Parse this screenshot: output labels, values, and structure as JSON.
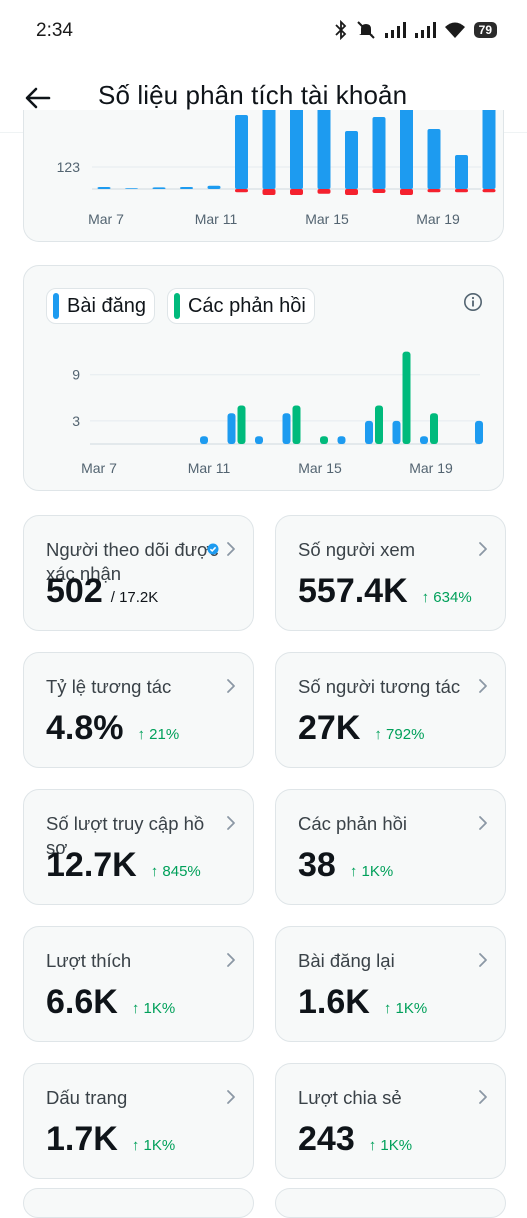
{
  "status_bar": {
    "time": "2:34",
    "battery": "79",
    "icons": [
      "bluetooth-icon",
      "mute-icon",
      "signal-icon",
      "signal-icon",
      "wifi-icon",
      "battery-icon"
    ]
  },
  "header": {
    "title": "Số liệu phân tích tài khoản",
    "back_icon": "arrow-left-icon"
  },
  "chart_data": [
    {
      "type": "bar",
      "x_tick_labels": [
        "Mar 7",
        "Mar 11",
        "Mar 15",
        "Mar 19"
      ],
      "y_tick_labels": [
        "123"
      ],
      "categories": [
        "Mar 6",
        "Mar 7",
        "Mar 8",
        "Mar 9",
        "Mar 10",
        "Mar 11",
        "Mar 12",
        "Mar 13",
        "Mar 14",
        "Mar 15",
        "Mar 16",
        "Mar 17",
        "Mar 18",
        "Mar 19",
        "Mar 20"
      ],
      "series": [
        {
          "color": "#1d9bf0",
          "values": [
            5,
            2,
            4,
            5,
            8,
            185,
            300,
            300,
            240,
            145,
            180,
            240,
            150,
            85,
            225
          ]
        },
        {
          "color": "#f4212e",
          "values": [
            0,
            0,
            0,
            0,
            0,
            -8,
            -15,
            -15,
            -12,
            -15,
            -10,
            -15,
            -8,
            -8,
            -8
          ]
        }
      ],
      "grid": true,
      "note_visible": "chart top is cropped by scrolling"
    },
    {
      "type": "bar",
      "legend": [
        "Bài đăng",
        "Các phản hồi"
      ],
      "legend_position": "top-left",
      "x_tick_labels": [
        "Mar 7",
        "Mar 11",
        "Mar 15",
        "Mar 19"
      ],
      "y_tick_labels": [
        "9",
        "3"
      ],
      "ylim": [
        0,
        12
      ],
      "categories": [
        "Mar 6",
        "Mar 7",
        "Mar 8",
        "Mar 9",
        "Mar 10",
        "Mar 11",
        "Mar 12",
        "Mar 13",
        "Mar 14",
        "Mar 15",
        "Mar 16",
        "Mar 17",
        "Mar 18",
        "Mar 19",
        "Mar 20"
      ],
      "series": [
        {
          "name": "Bài đăng",
          "color": "#1d9bf0",
          "values": [
            0,
            0,
            0,
            0,
            1,
            4,
            1,
            4,
            0,
            1,
            3,
            3,
            1,
            0,
            3
          ]
        },
        {
          "name": "Các phản hồi",
          "color": "#00ba7c",
          "values": [
            0,
            0,
            0,
            0,
            0,
            5,
            0,
            5,
            1,
            0,
            5,
            12,
            4,
            0,
            0
          ]
        }
      ],
      "grid": true
    }
  ],
  "chart_ui": {
    "legend_posts": "Bài đăng",
    "legend_replies": "Các phản hồi",
    "info_icon": "info-icon"
  },
  "stats": [
    {
      "label": "Người theo dõi được xác nhận",
      "value": "502",
      "sub": "/ 17.2K",
      "change": "",
      "verified": true
    },
    {
      "label": "Số người xem",
      "value": "557.4K",
      "sub": "",
      "change": "↑ 634%"
    },
    {
      "label": "Tỷ lệ tương tác",
      "value": "4.8%",
      "sub": "",
      "change": "↑ 21%"
    },
    {
      "label": "Số người tương tác",
      "value": "27K",
      "sub": "",
      "change": "↑ 792%"
    },
    {
      "label": "Số lượt truy cập hồ sơ",
      "value": "12.7K",
      "sub": "",
      "change": "↑ 845%"
    },
    {
      "label": "Các phản hồi",
      "value": "38",
      "sub": "",
      "change": "↑ 1K%"
    },
    {
      "label": "Lượt thích",
      "value": "6.6K",
      "sub": "",
      "change": "↑ 1K%"
    },
    {
      "label": "Bài đăng lại",
      "value": "1.6K",
      "sub": "",
      "change": "↑ 1K%"
    },
    {
      "label": "Dấu trang",
      "value": "1.7K",
      "sub": "",
      "change": "↑ 1K%"
    },
    {
      "label": "Lượt chia sẻ",
      "value": "243",
      "sub": "",
      "change": "↑ 1K%"
    }
  ],
  "colors": {
    "posts": "#1d9bf0",
    "replies": "#00ba7c",
    "negative": "#f4212e",
    "positive_change": "#00a05a",
    "card_bg": "#f7f9f9"
  }
}
